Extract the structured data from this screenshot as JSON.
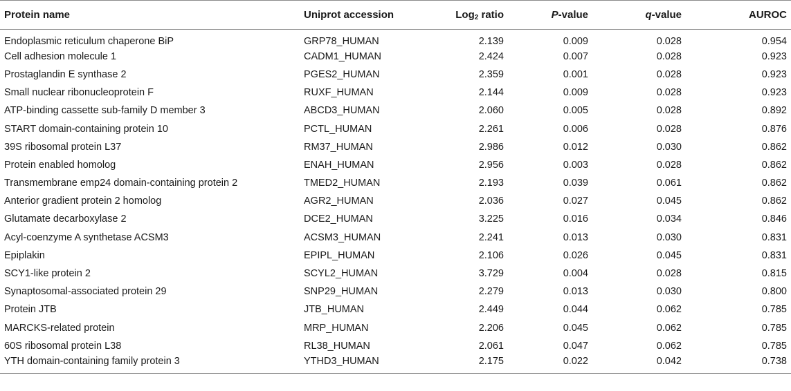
{
  "table": {
    "headers": {
      "protein_name": "Protein name",
      "uniprot_accession": "Uniprot accession",
      "log_prefix": "Log",
      "log_sub": "2",
      "log_suffix": " ratio",
      "p_italic": "P",
      "p_suffix": "-value",
      "q_italic": "q",
      "q_suffix": "-value",
      "auroc": "AUROC"
    },
    "rows": [
      {
        "name": "Endoplasmic reticulum chaperone BiP",
        "accession": "GRP78_HUMAN",
        "log2": "2.139",
        "p": "0.009",
        "q": "0.028",
        "auroc": "0.954"
      },
      {
        "name": "Cell adhesion molecule 1",
        "accession": "CADM1_HUMAN",
        "log2": "2.424",
        "p": "0.007",
        "q": "0.028",
        "auroc": "0.923"
      },
      {
        "name": "Prostaglandin E synthase 2",
        "accession": "PGES2_HUMAN",
        "log2": "2.359",
        "p": "0.001",
        "q": "0.028",
        "auroc": "0.923"
      },
      {
        "name": "Small nuclear ribonucleoprotein F",
        "accession": "RUXF_HUMAN",
        "log2": "2.144",
        "p": "0.009",
        "q": "0.028",
        "auroc": "0.923"
      },
      {
        "name": "ATP-binding cassette sub-family D member 3",
        "accession": "ABCD3_HUMAN",
        "log2": "2.060",
        "p": "0.005",
        "q": "0.028",
        "auroc": "0.892"
      },
      {
        "name": "START domain-containing protein 10",
        "accession": "PCTL_HUMAN",
        "log2": "2.261",
        "p": "0.006",
        "q": "0.028",
        "auroc": "0.876"
      },
      {
        "name": "39S ribosomal protein L37",
        "accession": "RM37_HUMAN",
        "log2": "2.986",
        "p": "0.012",
        "q": "0.030",
        "auroc": "0.862"
      },
      {
        "name": "Protein enabled homolog",
        "accession": "ENAH_HUMAN",
        "log2": "2.956",
        "p": "0.003",
        "q": "0.028",
        "auroc": "0.862"
      },
      {
        "name": "Transmembrane emp24 domain-containing protein 2",
        "accession": "TMED2_HUMAN",
        "log2": "2.193",
        "p": "0.039",
        "q": "0.061",
        "auroc": "0.862"
      },
      {
        "name": "Anterior gradient protein 2 homolog",
        "accession": "AGR2_HUMAN",
        "log2": "2.036",
        "p": "0.027",
        "q": "0.045",
        "auroc": "0.862"
      },
      {
        "name": "Glutamate decarboxylase 2",
        "accession": "DCE2_HUMAN",
        "log2": "3.225",
        "p": "0.016",
        "q": "0.034",
        "auroc": "0.846"
      },
      {
        "name": "Acyl-coenzyme A synthetase ACSM3",
        "accession": "ACSM3_HUMAN",
        "log2": "2.241",
        "p": "0.013",
        "q": "0.030",
        "auroc": "0.831"
      },
      {
        "name": "Epiplakin",
        "accession": "EPIPL_HUMAN",
        "log2": "2.106",
        "p": "0.026",
        "q": "0.045",
        "auroc": "0.831"
      },
      {
        "name": "SCY1-like protein 2",
        "accession": "SCYL2_HUMAN",
        "log2": "3.729",
        "p": "0.004",
        "q": "0.028",
        "auroc": "0.815"
      },
      {
        "name": "Synaptosomal-associated protein 29",
        "accession": "SNP29_HUMAN",
        "log2": "2.279",
        "p": "0.013",
        "q": "0.030",
        "auroc": "0.800"
      },
      {
        "name": "Protein JTB",
        "accession": "JTB_HUMAN",
        "log2": "2.449",
        "p": "0.044",
        "q": "0.062",
        "auroc": "0.785"
      },
      {
        "name": "MARCKS-related protein",
        "accession": "MRP_HUMAN",
        "log2": "2.206",
        "p": "0.045",
        "q": "0.062",
        "auroc": "0.785"
      },
      {
        "name": "60S ribosomal protein L38",
        "accession": "RL38_HUMAN",
        "log2": "2.061",
        "p": "0.047",
        "q": "0.062",
        "auroc": "0.785"
      },
      {
        "name": "YTH domain-containing family protein 3",
        "accession": "YTHD3_HUMAN",
        "log2": "2.175",
        "p": "0.022",
        "q": "0.042",
        "auroc": "0.738"
      }
    ]
  }
}
